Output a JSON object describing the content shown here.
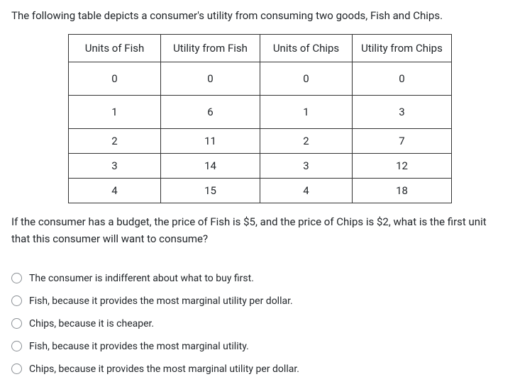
{
  "intro": "The following table depicts a consumer's utility from consuming two goods, Fish and Chips.",
  "question": "If the consumer has a budget, the price of Fish is $5, and the price of Chips is $2, what is the first unit that this consumer will want to consume?",
  "table": {
    "columns": [
      "Units of Fish",
      "Utility from Fish",
      "Units of Chips",
      "Utility from Chips"
    ],
    "rows": [
      [
        "0",
        "0",
        "0",
        "0"
      ],
      [
        "1",
        "6",
        "1",
        "3"
      ],
      [
        "2",
        "11",
        "2",
        "7"
      ],
      [
        "3",
        "14",
        "3",
        "12"
      ],
      [
        "4",
        "15",
        "4",
        "18"
      ]
    ]
  },
  "options": [
    "The consumer is indifferent about what to buy first.",
    "Fish, because it provides the most marginal utility per dollar.",
    "Chips, because it is cheaper.",
    "Fish, because it provides the most marginal utility.",
    "Chips, because it provides the most marginal utility per dollar."
  ]
}
